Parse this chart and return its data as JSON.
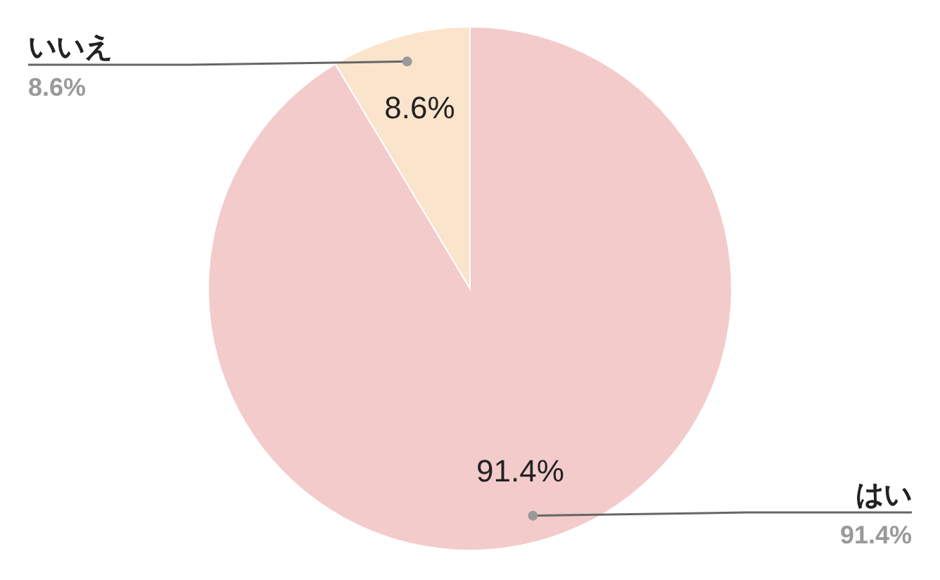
{
  "chart_data": {
    "type": "pie",
    "categories": [
      "はい",
      "いいえ"
    ],
    "values": [
      91.4,
      8.6
    ],
    "colors": [
      "#f3cbcb",
      "#fbe4cc"
    ],
    "value_labels": [
      "91.4%",
      "8.6%"
    ]
  }
}
